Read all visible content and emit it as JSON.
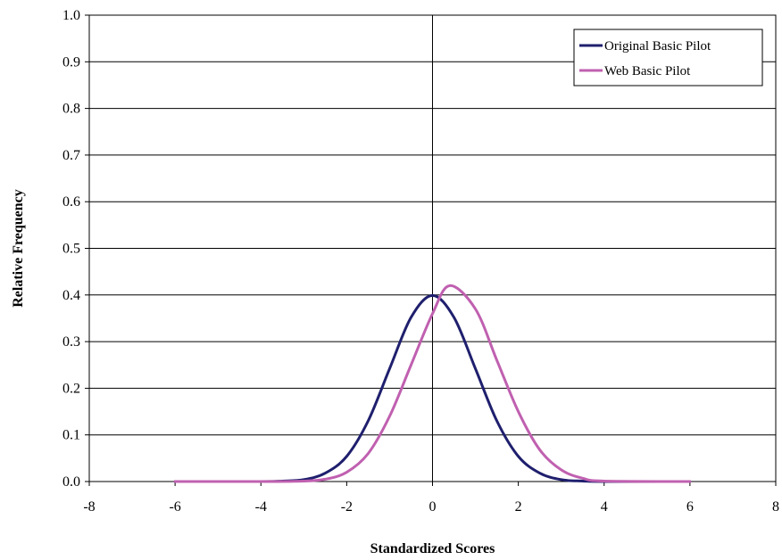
{
  "chart_data": {
    "type": "line",
    "xlabel": "Standardized Scores",
    "ylabel": "Relative Frequency",
    "xlim": [
      -8,
      8
    ],
    "ylim": [
      0,
      1.0
    ],
    "x_ticks": [
      "-8",
      "-6",
      "-4",
      "-2",
      "0",
      "2",
      "4",
      "6",
      "8"
    ],
    "y_ticks": [
      "0.0",
      "0.1",
      "0.2",
      "0.3",
      "0.4",
      "0.5",
      "0.6",
      "0.7",
      "0.8",
      "0.9",
      "1.0"
    ],
    "grid": "horizontal",
    "legend_position": "top-right",
    "series": [
      {
        "name": "Original Basic Pilot",
        "color": "#1f1f6e",
        "points": [
          [
            -6,
            0
          ],
          [
            -4,
            0
          ],
          [
            -3.5,
            0.001
          ],
          [
            -3,
            0.004
          ],
          [
            -2.5,
            0.018
          ],
          [
            -2,
            0.054
          ],
          [
            -1.5,
            0.13
          ],
          [
            -1,
            0.242
          ],
          [
            -0.5,
            0.352
          ],
          [
            0,
            0.399
          ],
          [
            0.5,
            0.352
          ],
          [
            1,
            0.242
          ],
          [
            1.5,
            0.13
          ],
          [
            2,
            0.054
          ],
          [
            2.5,
            0.018
          ],
          [
            3,
            0.004
          ],
          [
            3.5,
            0.001
          ],
          [
            4,
            0
          ],
          [
            6,
            0
          ]
        ]
      },
      {
        "name": "Web Basic Pilot",
        "color": "#c060b0",
        "points": [
          [
            -6,
            0
          ],
          [
            -4,
            0
          ],
          [
            -3,
            0.001
          ],
          [
            -2.5,
            0.005
          ],
          [
            -2,
            0.02
          ],
          [
            -1.5,
            0.06
          ],
          [
            -1,
            0.14
          ],
          [
            -0.5,
            0.25
          ],
          [
            0,
            0.36
          ],
          [
            0.4,
            0.42
          ],
          [
            1,
            0.37
          ],
          [
            1.5,
            0.26
          ],
          [
            2,
            0.15
          ],
          [
            2.5,
            0.068
          ],
          [
            3,
            0.025
          ],
          [
            3.5,
            0.007
          ],
          [
            4,
            0.001
          ],
          [
            6,
            0
          ]
        ]
      }
    ]
  }
}
